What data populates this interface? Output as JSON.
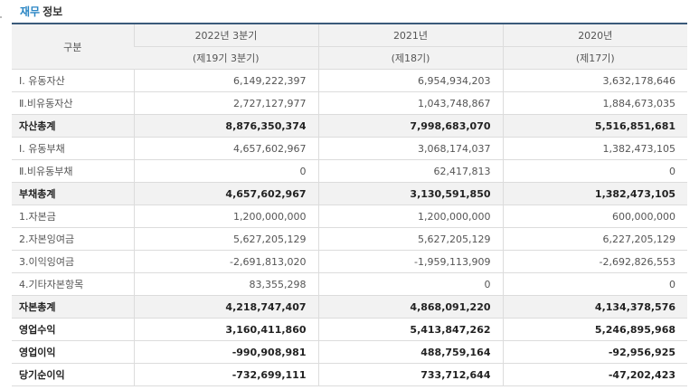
{
  "section": {
    "title_accent": "재무",
    "title_rest": "정보"
  },
  "header": {
    "category_label": "구분",
    "periods": [
      "2022년 3분기",
      "2021년",
      "2020년"
    ],
    "fiscal_terms": [
      "(제19기 3분기)",
      "(제18기)",
      "(제17기)"
    ]
  },
  "rows": [
    {
      "label": "Ⅰ. 유동자산",
      "values": [
        "6,149,222,397",
        "6,954,934,203",
        "3,632,178,646"
      ],
      "bold": false,
      "shade": false
    },
    {
      "label": "Ⅱ.비유동자산",
      "values": [
        "2,727,127,977",
        "1,043,748,867",
        "1,884,673,035"
      ],
      "bold": false,
      "shade": false
    },
    {
      "label": "자산총계",
      "values": [
        "8,876,350,374",
        "7,998,683,070",
        "5,516,851,681"
      ],
      "bold": true,
      "shade": true
    },
    {
      "label": "Ⅰ. 유동부채",
      "values": [
        "4,657,602,967",
        "3,068,174,037",
        "1,382,473,105"
      ],
      "bold": false,
      "shade": false
    },
    {
      "label": "Ⅱ.비유동부채",
      "values": [
        "0",
        "62,417,813",
        "0"
      ],
      "bold": false,
      "shade": false
    },
    {
      "label": "부채총계",
      "values": [
        "4,657,602,967",
        "3,130,591,850",
        "1,382,473,105"
      ],
      "bold": true,
      "shade": true
    },
    {
      "label": "1.자본금",
      "values": [
        "1,200,000,000",
        "1,200,000,000",
        "600,000,000"
      ],
      "bold": false,
      "shade": false
    },
    {
      "label": "2.자본잉여금",
      "values": [
        "5,627,205,129",
        "5,627,205,129",
        "6,227,205,129"
      ],
      "bold": false,
      "shade": false
    },
    {
      "label": "3.이익잉여금",
      "values": [
        "-2,691,813,020",
        "-1,959,113,909",
        "-2,692,826,553"
      ],
      "bold": false,
      "shade": false
    },
    {
      "label": "4.기타자본항목",
      "values": [
        "83,355,298",
        "0",
        "0"
      ],
      "bold": false,
      "shade": false
    },
    {
      "label": "자본총계",
      "values": [
        "4,218,747,407",
        "4,868,091,220",
        "4,134,378,576"
      ],
      "bold": true,
      "shade": true
    },
    {
      "label": "영업수익",
      "values": [
        "3,160,411,860",
        "5,413,847,262",
        "5,246,895,968"
      ],
      "bold": true,
      "shade": false
    },
    {
      "label": "영업이익",
      "values": [
        "-990,908,981",
        "488,759,164",
        "-92,956,925"
      ],
      "bold": true,
      "shade": false
    },
    {
      "label": "당기순이익",
      "values": [
        "-732,699,111",
        "733,712,644",
        "-47,202,423"
      ],
      "bold": true,
      "shade": false
    }
  ]
}
